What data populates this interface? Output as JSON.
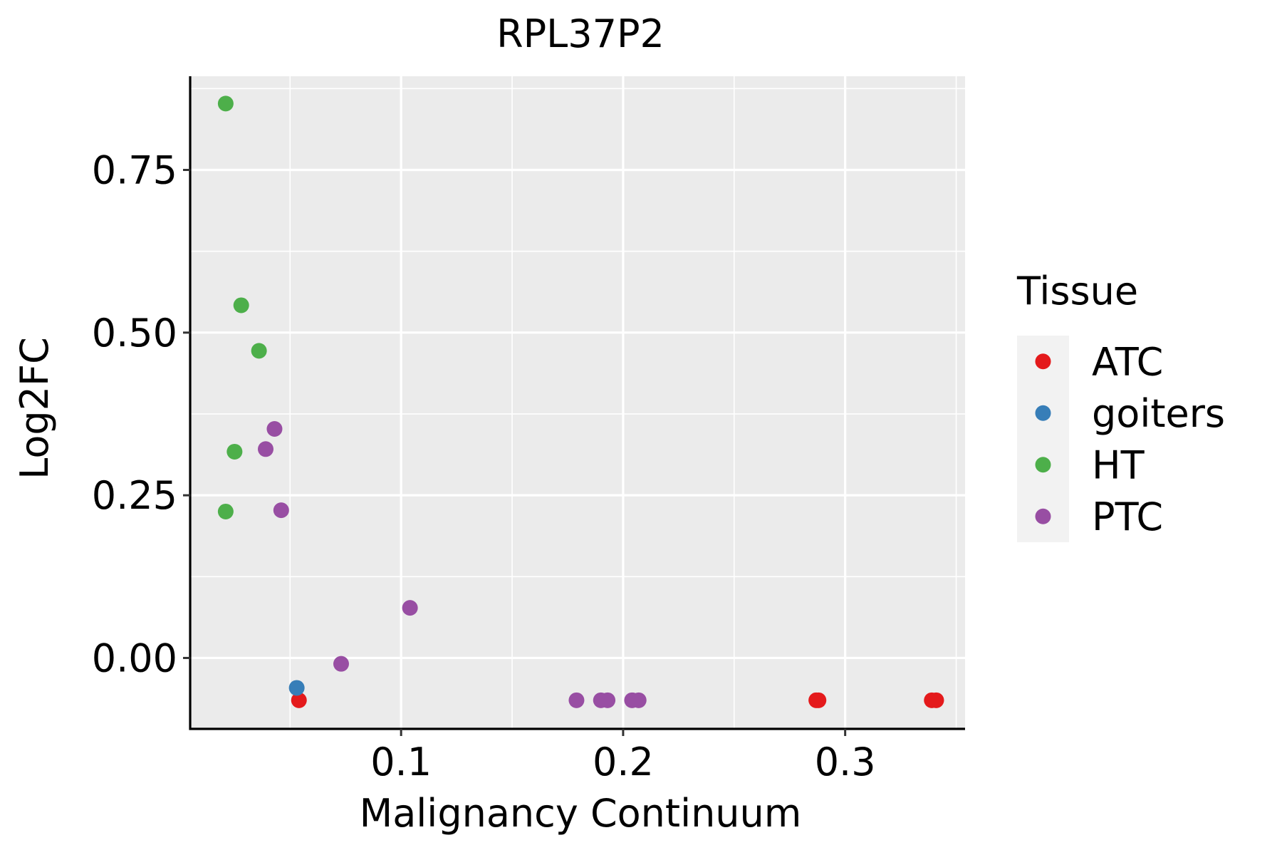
{
  "chart_data": {
    "type": "scatter",
    "title": "RPL37P2",
    "xlabel": "Malignancy Continuum",
    "ylabel": "Log2FC",
    "xlim": [
      0.005,
      0.354
    ],
    "ylim": [
      -0.109,
      0.894
    ],
    "x_ticks": [
      0.1,
      0.2,
      0.3
    ],
    "x_tick_labels": [
      "0.1",
      "0.2",
      "0.3"
    ],
    "y_ticks": [
      0.0,
      0.25,
      0.5,
      0.75
    ],
    "y_tick_labels": [
      "0.00",
      "0.25",
      "0.50",
      "0.75"
    ],
    "x_minor_ticks": [
      0.05,
      0.15,
      0.25,
      0.35
    ],
    "y_minor_ticks": [
      -0.125,
      0.125,
      0.375,
      0.625,
      0.875
    ],
    "grid": true,
    "legend": {
      "title": "Tissue",
      "position": "right"
    },
    "series": [
      {
        "name": "ATC",
        "color": "#E41A1C",
        "points": [
          [
            0.054,
            -0.065
          ],
          [
            0.287,
            -0.065
          ],
          [
            0.288,
            -0.065
          ],
          [
            0.339,
            -0.065
          ],
          [
            0.341,
            -0.065
          ]
        ]
      },
      {
        "name": "goiters",
        "color": "#377EB8",
        "points": [
          [
            0.053,
            -0.046
          ]
        ]
      },
      {
        "name": "HT",
        "color": "#4DAF4A",
        "points": [
          [
            0.021,
            0.852
          ],
          [
            0.028,
            0.542
          ],
          [
            0.036,
            0.472
          ],
          [
            0.025,
            0.317
          ],
          [
            0.021,
            0.225
          ]
        ]
      },
      {
        "name": "PTC",
        "color": "#984EA3",
        "points": [
          [
            0.043,
            0.352
          ],
          [
            0.039,
            0.321
          ],
          [
            0.046,
            0.227
          ],
          [
            0.104,
            0.077
          ],
          [
            0.073,
            -0.009
          ],
          [
            0.179,
            -0.065
          ],
          [
            0.19,
            -0.065
          ],
          [
            0.193,
            -0.065
          ],
          [
            0.204,
            -0.065
          ],
          [
            0.207,
            -0.065
          ]
        ]
      }
    ]
  }
}
